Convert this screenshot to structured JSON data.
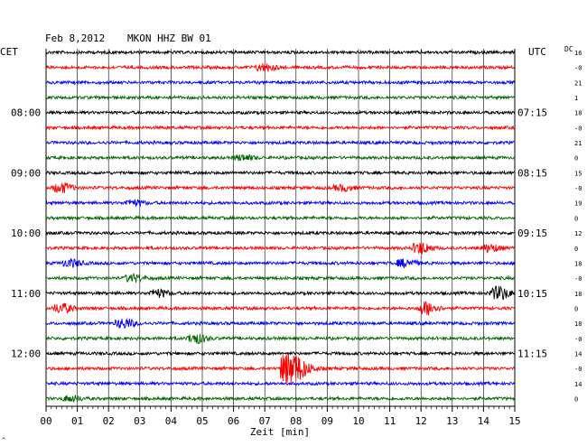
{
  "header": {
    "date": "Feb 8,2012",
    "station": "MKON HHZ BW 01",
    "left_tz": "CET",
    "right_tz": "UTC",
    "dc_label": "DC"
  },
  "xaxis": {
    "label": "Zeit [min]",
    "ticks": [
      "00",
      "01",
      "02",
      "03",
      "04",
      "05",
      "06",
      "07",
      "08",
      "09",
      "10",
      "11",
      "12",
      "13",
      "14",
      "15"
    ]
  },
  "footer_mark": "^",
  "colors": {
    "black": "#000000",
    "red": "#ff0000",
    "blue": "#0000ff",
    "green": "#006600",
    "grid": "#000000"
  },
  "chart_data": {
    "type": "line",
    "title": "Feb 8,2012   MKON HHZ BW 01",
    "xlabel": "Zeit [min]",
    "xlim": [
      0,
      15
    ],
    "row_count": 24,
    "color_cycle": [
      "black",
      "red",
      "blue",
      "green"
    ],
    "left_hour_labels": [
      {
        "row": 4,
        "text": "08:00"
      },
      {
        "row": 8,
        "text": "09:00"
      },
      {
        "row": 12,
        "text": "10:00"
      },
      {
        "row": 16,
        "text": "11:00"
      },
      {
        "row": 20,
        "text": "12:00"
      }
    ],
    "right_hour_labels": [
      {
        "row": 4,
        "text": "07:15"
      },
      {
        "row": 8,
        "text": "08:15"
      },
      {
        "row": 12,
        "text": "09:15"
      },
      {
        "row": 16,
        "text": "10:15"
      },
      {
        "row": 20,
        "text": "11:15"
      }
    ],
    "dc_offsets": [
      "16",
      "-0",
      "21",
      "1",
      "18",
      "-0",
      "21",
      "0",
      "15",
      "-0",
      "19",
      "0",
      "12",
      "0",
      "18",
      "-0",
      "18",
      "0",
      "18",
      "-0",
      "14",
      "-0",
      "14",
      "0"
    ],
    "events": [
      {
        "row": 1,
        "minute": 7.0,
        "amplitude": 4
      },
      {
        "row": 7,
        "minute": 6.3,
        "amplitude": 3
      },
      {
        "row": 9,
        "minute": 0.5,
        "amplitude": 5
      },
      {
        "row": 9,
        "minute": 9.5,
        "amplitude": 3
      },
      {
        "row": 10,
        "minute": 2.8,
        "amplitude": 3
      },
      {
        "row": 13,
        "minute": 12.0,
        "amplitude": 6
      },
      {
        "row": 13,
        "minute": 14.2,
        "amplitude": 4
      },
      {
        "row": 14,
        "minute": 0.8,
        "amplitude": 4
      },
      {
        "row": 14,
        "minute": 11.5,
        "amplitude": 4
      },
      {
        "row": 15,
        "minute": 2.8,
        "amplitude": 4
      },
      {
        "row": 16,
        "minute": 14.5,
        "amplitude": 7
      },
      {
        "row": 16,
        "minute": 3.6,
        "amplitude": 4
      },
      {
        "row": 17,
        "minute": 0.5,
        "amplitude": 5
      },
      {
        "row": 17,
        "minute": 12.2,
        "amplitude": 7
      },
      {
        "row": 18,
        "minute": 2.5,
        "amplitude": 5
      },
      {
        "row": 19,
        "minute": 4.8,
        "amplitude": 5
      },
      {
        "row": 21,
        "minute": 7.8,
        "amplitude": 18
      },
      {
        "row": 23,
        "minute": 0.8,
        "amplitude": 3
      }
    ]
  }
}
